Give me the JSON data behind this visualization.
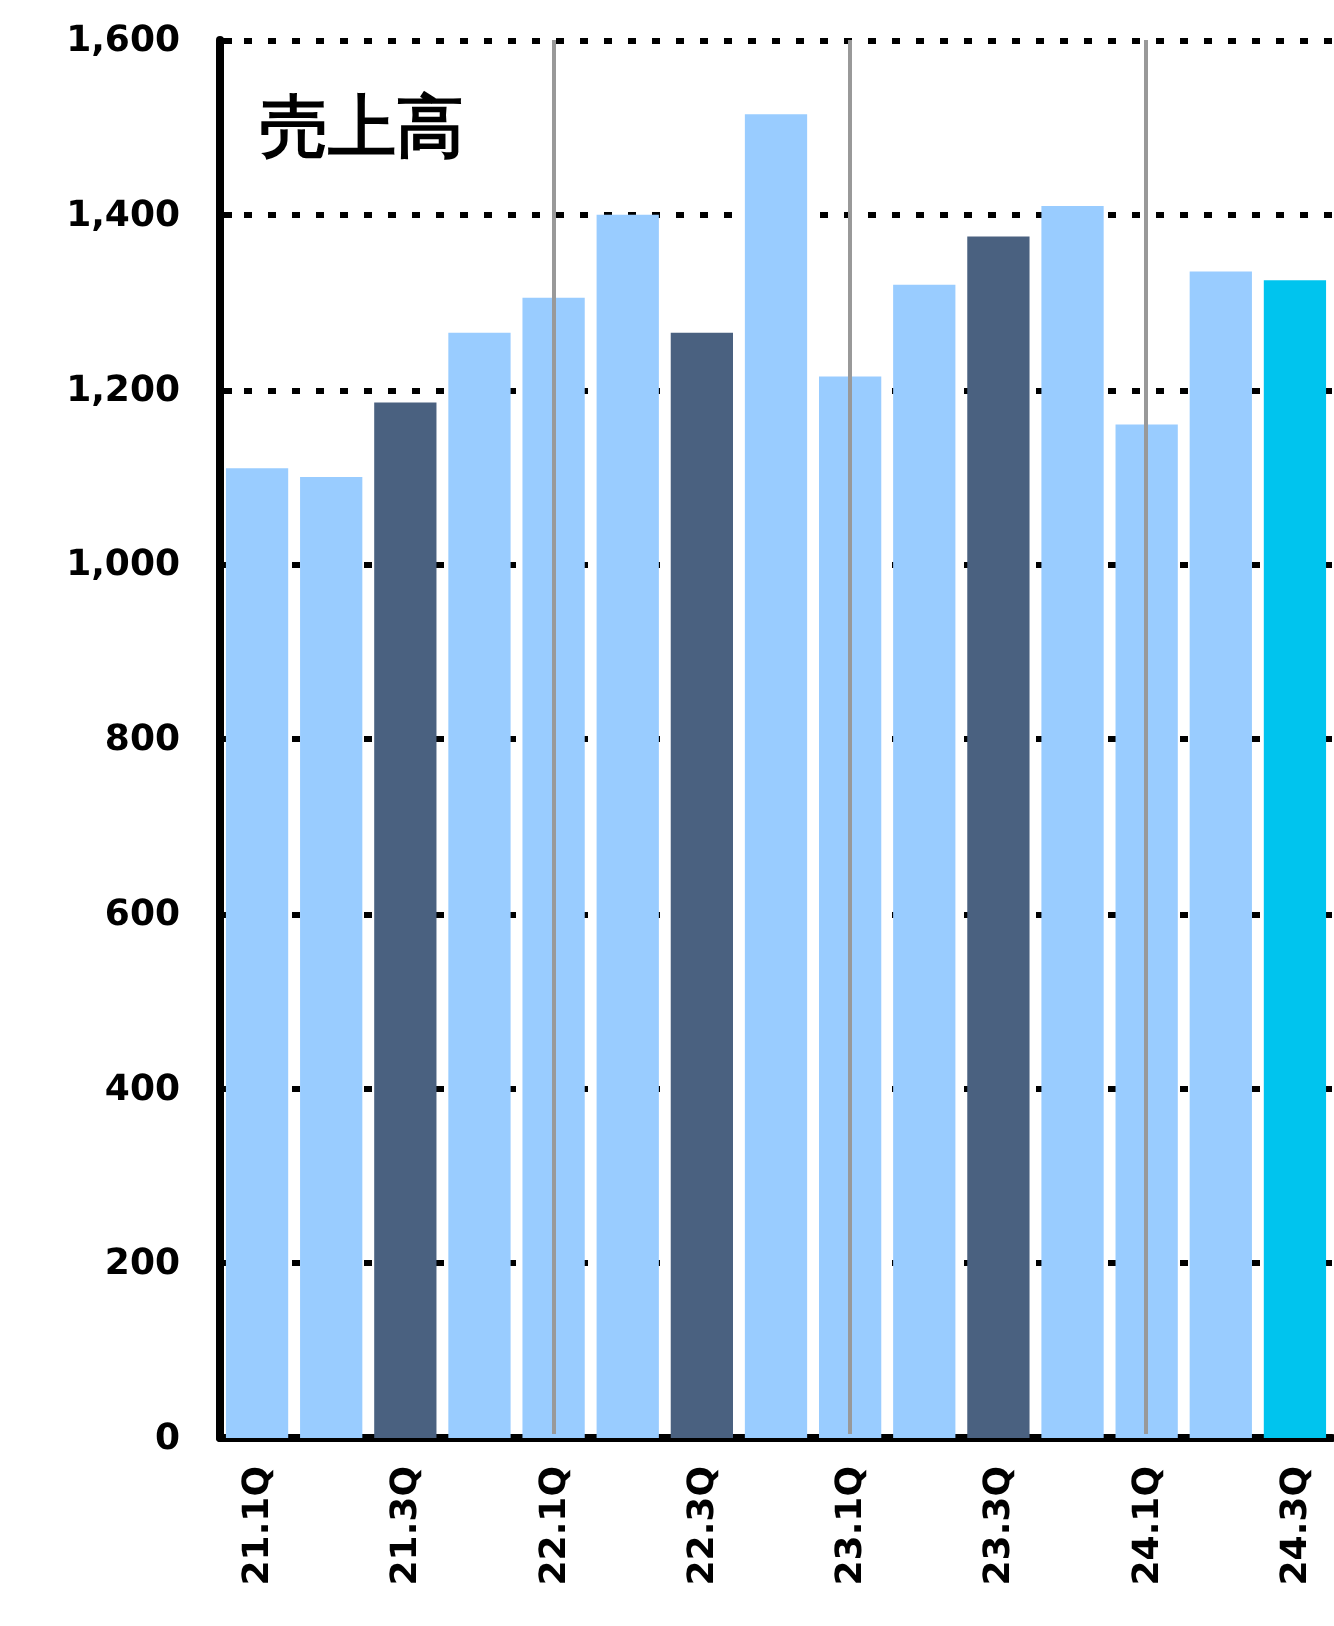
{
  "chart_data": {
    "type": "bar",
    "title": "売上高",
    "categories": [
      "21.1Q",
      null,
      "21.3Q",
      null,
      "22.1Q",
      null,
      "22.3Q",
      null,
      "23.1Q",
      null,
      "23.3Q",
      null,
      "24.1Q",
      null,
      "24.3Q"
    ],
    "values": [
      1110,
      1100,
      1185,
      1265,
      1305,
      1400,
      1265,
      1515,
      1215,
      1320,
      1375,
      1410,
      1160,
      1335,
      1325
    ],
    "colors": [
      "#99ccff",
      "#99ccff",
      "#4a6180",
      "#99ccff",
      "#99ccff",
      "#99ccff",
      "#4a6180",
      "#99ccff",
      "#99ccff",
      "#99ccff",
      "#4a6180",
      "#99ccff",
      "#99ccff",
      "#99ccff",
      "#00c4ee"
    ],
    "ylim": [
      0,
      1600
    ],
    "yticks": [
      0,
      200,
      400,
      600,
      800,
      {
        "value": 1000,
        "label": "1,000"
      },
      {
        "value": 1200,
        "label": "1,200"
      },
      {
        "value": 1400,
        "label": "1,400"
      },
      {
        "value": 1600,
        "label": "1,600"
      }
    ],
    "grid": "y"
  }
}
